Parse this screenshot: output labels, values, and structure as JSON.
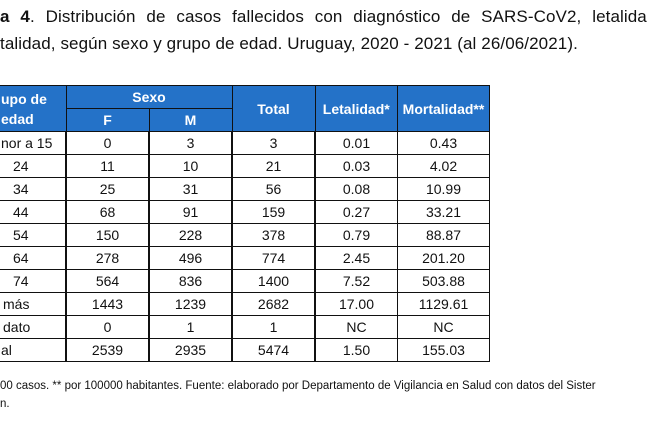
{
  "title": {
    "bold": "a 4",
    "line1_rest": ". Distribución de casos fallecidos con diagnóstico de SARS-CoV2, letalida",
    "line2": "talidad, según sexo y grupo de edad. Uruguay, 2020 - 2021 (al 26/06/2021)."
  },
  "table": {
    "header": {
      "group_line1": "upo de",
      "group_line2": "edad",
      "sexo": "Sexo",
      "f": "F",
      "m": "M",
      "total": "Total",
      "letalidad": "Letalidad*",
      "mortalidad": "Mortalidad**"
    },
    "rows": [
      {
        "group": "nor a 15",
        "f": "0",
        "m": "3",
        "total": "3",
        "letalidad": "0.01",
        "mortalidad": "0.43"
      },
      {
        "group": "24",
        "f": "11",
        "m": "10",
        "total": "21",
        "letalidad": "0.03",
        "mortalidad": "4.02"
      },
      {
        "group": "34",
        "f": "25",
        "m": "31",
        "total": "56",
        "letalidad": "0.08",
        "mortalidad": "10.99"
      },
      {
        "group": "44",
        "f": "68",
        "m": "91",
        "total": "159",
        "letalidad": "0.27",
        "mortalidad": "33.21"
      },
      {
        "group": "54",
        "f": "150",
        "m": "228",
        "total": "378",
        "letalidad": "0.79",
        "mortalidad": "88.87"
      },
      {
        "group": "64",
        "f": "278",
        "m": "496",
        "total": "774",
        "letalidad": "2.45",
        "mortalidad": "201.20"
      },
      {
        "group": "74",
        "f": "564",
        "m": "836",
        "total": "1400",
        "letalidad": "7.52",
        "mortalidad": "503.88"
      },
      {
        "group": "más",
        "f": "1443",
        "m": "1239",
        "total": "2682",
        "letalidad": "17.00",
        "mortalidad": "1129.61"
      },
      {
        "group": "dato",
        "f": "0",
        "m": "1",
        "total": "1",
        "letalidad": "NC",
        "mortalidad": "NC"
      },
      {
        "group": "al",
        "f": "2539",
        "m": "2935",
        "total": "5474",
        "letalidad": "1.50",
        "mortalidad": "155.03"
      }
    ]
  },
  "footnote": {
    "line1": "00 casos. ** por 100000 habitantes. Fuente: elaborado por Departamento de Vigilancia en Salud con datos del Sister",
    "line2": "n."
  }
}
